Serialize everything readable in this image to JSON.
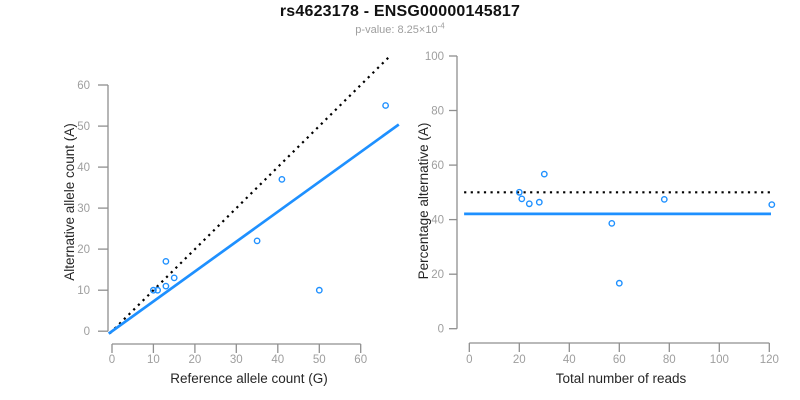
{
  "header": {
    "title": "rs4623178 - ENSG00000145817",
    "subtitle_prefix": "p-value: 8.25×10",
    "subtitle_exponent": "-4"
  },
  "colors": {
    "accent_blue": "#1E90FF",
    "dotted_black": "#000000",
    "axis_gray": "#8f8f8f",
    "tick_label_gray": "#9e9e9e",
    "axis_title_black": "#262626",
    "title_black": "#111111",
    "subtitle_gray": "#9e9e9e",
    "background": "#ffffff"
  },
  "chart_data": [
    {
      "name": "allele-counts-scatter",
      "type": "scatter",
      "xlabel": "Reference allele count (G)",
      "ylabel": "Alternative allele count (A)",
      "xlim": [
        0,
        67
      ],
      "ylim": [
        0,
        67
      ],
      "xticks": [
        0,
        10,
        20,
        30,
        40,
        50,
        60
      ],
      "yticks": [
        0,
        10,
        20,
        30,
        40,
        50,
        60
      ],
      "grid": false,
      "legend": null,
      "points": [
        [
          10,
          10
        ],
        [
          11,
          10
        ],
        [
          13,
          11
        ],
        [
          15,
          13
        ],
        [
          13,
          17
        ],
        [
          35,
          22
        ],
        [
          41,
          37
        ],
        [
          50,
          10
        ],
        [
          66,
          55
        ]
      ],
      "lines": [
        {
          "name": "identity-line",
          "kind": "abline",
          "slope": 1,
          "intercept": 0,
          "style": "dotted",
          "color": "#000000"
        },
        {
          "name": "fitted-proportion-line",
          "kind": "abline",
          "slope": 0.728,
          "intercept": 0,
          "style": "solid",
          "color": "#1E90FF"
        }
      ]
    },
    {
      "name": "percentage-vs-reads-scatter",
      "type": "scatter",
      "xlabel": "Total number of reads",
      "ylabel": "Percentage alternative (A)",
      "xlim": [
        0,
        121
      ],
      "ylim": [
        0,
        100
      ],
      "xticks": [
        0,
        20,
        40,
        60,
        80,
        100,
        120
      ],
      "yticks": [
        0,
        20,
        40,
        60,
        80,
        100
      ],
      "grid": false,
      "legend": null,
      "points": [
        [
          20,
          50
        ],
        [
          21,
          47.6
        ],
        [
          24,
          45.8
        ],
        [
          28,
          46.4
        ],
        [
          30,
          56.7
        ],
        [
          57,
          38.6
        ],
        [
          60,
          16.7
        ],
        [
          78,
          47.4
        ],
        [
          121,
          45.5
        ]
      ],
      "lines": [
        {
          "name": "expected-50pct-line",
          "kind": "hline",
          "y": 50,
          "style": "dotted",
          "color": "#000000"
        },
        {
          "name": "observed-proportion-line",
          "kind": "hline",
          "y": 42.1,
          "style": "solid",
          "color": "#1E90FF"
        }
      ]
    }
  ]
}
